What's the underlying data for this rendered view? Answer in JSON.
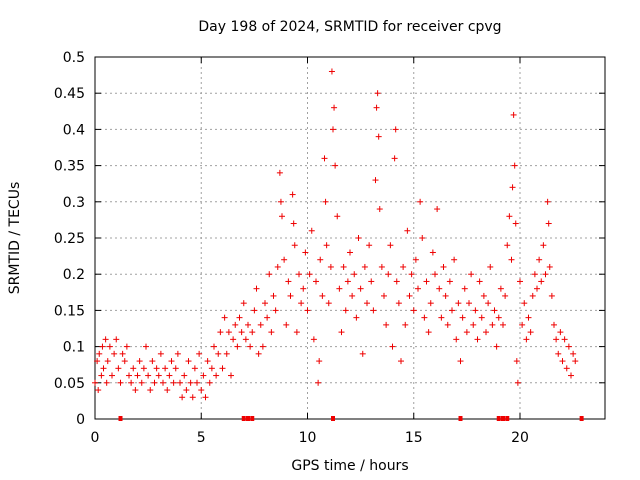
{
  "chart_data": {
    "type": "scatter",
    "title": "Day 198 of 2024, SRMTID for receiver cpvg",
    "xlabel": "GPS time / hours",
    "ylabel": "SRMTID / TECUs",
    "xlim": [
      0,
      24
    ],
    "ylim": [
      0,
      0.5
    ],
    "grid": true,
    "marker": "+",
    "series_color": "#ee0000",
    "x_ticks": [
      0,
      5,
      10,
      15,
      20
    ],
    "y_ticks": [
      0,
      0.05,
      0.1,
      0.15,
      0.2,
      0.25,
      0.3,
      0.35,
      0.4,
      0.45,
      0.5
    ],
    "x_tick_labels": [
      "0",
      "5",
      "10",
      "15",
      "20"
    ],
    "y_tick_labels": [
      "0",
      "0.05",
      "0.1",
      "0.15",
      "0.2",
      "0.25",
      "0.3",
      "0.35",
      "0.4",
      "0.45",
      "0.5"
    ],
    "series": [
      {
        "name": "SRMTID",
        "points": [
          [
            0.0,
            0.05
          ],
          [
            0.1,
            0.08
          ],
          [
            0.15,
            0.04
          ],
          [
            0.2,
            0.09
          ],
          [
            0.3,
            0.06
          ],
          [
            0.35,
            0.1
          ],
          [
            0.4,
            0.07
          ],
          [
            0.5,
            0.11
          ],
          [
            0.55,
            0.05
          ],
          [
            0.6,
            0.08
          ],
          [
            0.7,
            0.1
          ],
          [
            0.8,
            0.06
          ],
          [
            0.9,
            0.09
          ],
          [
            1.0,
            0.11
          ],
          [
            1.1,
            0.07
          ],
          [
            1.2,
            0.05
          ],
          [
            1.3,
            0.09
          ],
          [
            1.4,
            0.08
          ],
          [
            1.5,
            0.1
          ],
          [
            1.6,
            0.06
          ],
          [
            1.7,
            0.05
          ],
          [
            1.8,
            0.07
          ],
          [
            1.9,
            0.04
          ],
          [
            2.0,
            0.06
          ],
          [
            2.1,
            0.08
          ],
          [
            2.2,
            0.05
          ],
          [
            2.3,
            0.07
          ],
          [
            2.4,
            0.1
          ],
          [
            2.5,
            0.06
          ],
          [
            2.6,
            0.04
          ],
          [
            2.7,
            0.08
          ],
          [
            2.8,
            0.05
          ],
          [
            2.9,
            0.07
          ],
          [
            3.0,
            0.06
          ],
          [
            3.1,
            0.09
          ],
          [
            3.2,
            0.05
          ],
          [
            3.3,
            0.07
          ],
          [
            3.4,
            0.04
          ],
          [
            3.5,
            0.06
          ],
          [
            3.6,
            0.08
          ],
          [
            3.7,
            0.05
          ],
          [
            3.8,
            0.07
          ],
          [
            3.9,
            0.09
          ],
          [
            4.0,
            0.05
          ],
          [
            4.1,
            0.03
          ],
          [
            4.2,
            0.06
          ],
          [
            4.3,
            0.04
          ],
          [
            4.4,
            0.08
          ],
          [
            4.5,
            0.05
          ],
          [
            4.6,
            0.03
          ],
          [
            4.7,
            0.07
          ],
          [
            4.8,
            0.05
          ],
          [
            4.9,
            0.09
          ],
          [
            5.0,
            0.04
          ],
          [
            5.1,
            0.06
          ],
          [
            5.2,
            0.03
          ],
          [
            5.3,
            0.08
          ],
          [
            5.4,
            0.05
          ],
          [
            5.5,
            0.07
          ],
          [
            5.6,
            0.1
          ],
          [
            5.7,
            0.06
          ],
          [
            5.8,
            0.09
          ],
          [
            5.9,
            0.12
          ],
          [
            6.0,
            0.07
          ],
          [
            6.1,
            0.14
          ],
          [
            6.2,
            0.09
          ],
          [
            6.3,
            0.12
          ],
          [
            6.4,
            0.06
          ],
          [
            6.5,
            0.11
          ],
          [
            6.6,
            0.13
          ],
          [
            6.7,
            0.1
          ],
          [
            6.8,
            0.14
          ],
          [
            6.9,
            0.12
          ],
          [
            7.0,
            0.16
          ],
          [
            7.1,
            0.11
          ],
          [
            7.2,
            0.13
          ],
          [
            7.3,
            0.1
          ],
          [
            7.4,
            0.12
          ],
          [
            7.5,
            0.15
          ],
          [
            7.6,
            0.18
          ],
          [
            7.7,
            0.09
          ],
          [
            7.8,
            0.13
          ],
          [
            7.9,
            0.1
          ],
          [
            8.0,
            0.16
          ],
          [
            8.1,
            0.14
          ],
          [
            8.2,
            0.2
          ],
          [
            8.3,
            0.12
          ],
          [
            8.4,
            0.17
          ],
          [
            8.5,
            0.15
          ],
          [
            8.6,
            0.21
          ],
          [
            8.7,
            0.34
          ],
          [
            8.75,
            0.3
          ],
          [
            8.8,
            0.28
          ],
          [
            8.9,
            0.22
          ],
          [
            9.0,
            0.13
          ],
          [
            9.1,
            0.19
          ],
          [
            9.2,
            0.17
          ],
          [
            9.3,
            0.31
          ],
          [
            9.35,
            0.27
          ],
          [
            9.4,
            0.24
          ],
          [
            9.5,
            0.12
          ],
          [
            9.6,
            0.2
          ],
          [
            9.7,
            0.16
          ],
          [
            9.8,
            0.18
          ],
          [
            9.9,
            0.23
          ],
          [
            10.0,
            0.15
          ],
          [
            10.1,
            0.2
          ],
          [
            10.2,
            0.26
          ],
          [
            10.3,
            0.11
          ],
          [
            10.4,
            0.19
          ],
          [
            10.5,
            0.05
          ],
          [
            10.55,
            0.08
          ],
          [
            10.6,
            0.22
          ],
          [
            10.7,
            0.17
          ],
          [
            10.8,
            0.36
          ],
          [
            10.85,
            0.3
          ],
          [
            10.9,
            0.24
          ],
          [
            11.0,
            0.16
          ],
          [
            11.1,
            0.21
          ],
          [
            11.15,
            0.48
          ],
          [
            11.2,
            0.4
          ],
          [
            11.25,
            0.43
          ],
          [
            11.3,
            0.35
          ],
          [
            11.4,
            0.28
          ],
          [
            11.5,
            0.18
          ],
          [
            11.6,
            0.12
          ],
          [
            11.7,
            0.21
          ],
          [
            11.8,
            0.15
          ],
          [
            11.9,
            0.19
          ],
          [
            12.0,
            0.23
          ],
          [
            12.1,
            0.17
          ],
          [
            12.2,
            0.2
          ],
          [
            12.3,
            0.14
          ],
          [
            12.4,
            0.25
          ],
          [
            12.5,
            0.18
          ],
          [
            12.6,
            0.09
          ],
          [
            12.7,
            0.21
          ],
          [
            12.8,
            0.16
          ],
          [
            12.9,
            0.24
          ],
          [
            13.0,
            0.19
          ],
          [
            13.1,
            0.15
          ],
          [
            13.2,
            0.33
          ],
          [
            13.25,
            0.43
          ],
          [
            13.3,
            0.45
          ],
          [
            13.35,
            0.39
          ],
          [
            13.4,
            0.29
          ],
          [
            13.5,
            0.21
          ],
          [
            13.6,
            0.17
          ],
          [
            13.7,
            0.13
          ],
          [
            13.8,
            0.2
          ],
          [
            13.9,
            0.24
          ],
          [
            14.0,
            0.1
          ],
          [
            14.1,
            0.36
          ],
          [
            14.15,
            0.4
          ],
          [
            14.2,
            0.19
          ],
          [
            14.3,
            0.16
          ],
          [
            14.4,
            0.08
          ],
          [
            14.5,
            0.21
          ],
          [
            14.6,
            0.13
          ],
          [
            14.7,
            0.26
          ],
          [
            14.8,
            0.17
          ],
          [
            14.9,
            0.2
          ],
          [
            15.0,
            0.15
          ],
          [
            15.1,
            0.22
          ],
          [
            15.2,
            0.18
          ],
          [
            15.3,
            0.3
          ],
          [
            15.4,
            0.25
          ],
          [
            15.5,
            0.14
          ],
          [
            15.6,
            0.19
          ],
          [
            15.7,
            0.12
          ],
          [
            15.8,
            0.16
          ],
          [
            15.9,
            0.23
          ],
          [
            16.0,
            0.2
          ],
          [
            16.1,
            0.29
          ],
          [
            16.2,
            0.18
          ],
          [
            16.3,
            0.14
          ],
          [
            16.4,
            0.21
          ],
          [
            16.5,
            0.17
          ],
          [
            16.6,
            0.13
          ],
          [
            16.7,
            0.19
          ],
          [
            16.8,
            0.15
          ],
          [
            16.9,
            0.22
          ],
          [
            17.0,
            0.11
          ],
          [
            17.1,
            0.16
          ],
          [
            17.2,
            0.08
          ],
          [
            17.3,
            0.14
          ],
          [
            17.4,
            0.18
          ],
          [
            17.5,
            0.12
          ],
          [
            17.6,
            0.16
          ],
          [
            17.7,
            0.2
          ],
          [
            17.8,
            0.13
          ],
          [
            17.9,
            0.15
          ],
          [
            18.0,
            0.11
          ],
          [
            18.1,
            0.19
          ],
          [
            18.2,
            0.14
          ],
          [
            18.3,
            0.17
          ],
          [
            18.4,
            0.12
          ],
          [
            18.5,
            0.16
          ],
          [
            18.6,
            0.21
          ],
          [
            18.7,
            0.13
          ],
          [
            18.8,
            0.15
          ],
          [
            18.9,
            0.1
          ],
          [
            19.0,
            0.14
          ],
          [
            19.1,
            0.18
          ],
          [
            19.2,
            0.13
          ],
          [
            19.3,
            0.17
          ],
          [
            19.4,
            0.24
          ],
          [
            19.5,
            0.28
          ],
          [
            19.6,
            0.22
          ],
          [
            19.65,
            0.32
          ],
          [
            19.7,
            0.42
          ],
          [
            19.75,
            0.35
          ],
          [
            19.8,
            0.27
          ],
          [
            19.85,
            0.08
          ],
          [
            19.9,
            0.05
          ],
          [
            20.0,
            0.19
          ],
          [
            20.1,
            0.13
          ],
          [
            20.2,
            0.16
          ],
          [
            20.3,
            0.11
          ],
          [
            20.4,
            0.14
          ],
          [
            20.5,
            0.12
          ],
          [
            20.6,
            0.17
          ],
          [
            20.7,
            0.2
          ],
          [
            20.8,
            0.18
          ],
          [
            20.9,
            0.22
          ],
          [
            21.0,
            0.19
          ],
          [
            21.1,
            0.24
          ],
          [
            21.2,
            0.2
          ],
          [
            21.3,
            0.3
          ],
          [
            21.35,
            0.27
          ],
          [
            21.4,
            0.21
          ],
          [
            21.5,
            0.17
          ],
          [
            21.6,
            0.13
          ],
          [
            21.7,
            0.11
          ],
          [
            21.8,
            0.09
          ],
          [
            21.9,
            0.12
          ],
          [
            22.0,
            0.08
          ],
          [
            22.1,
            0.11
          ],
          [
            22.2,
            0.07
          ],
          [
            22.3,
            0.1
          ],
          [
            22.4,
            0.06
          ],
          [
            22.5,
            0.09
          ],
          [
            22.6,
            0.08
          ]
        ]
      }
    ],
    "axis_markers_x": [
      1.2,
      7.0,
      7.2,
      7.4,
      11.2,
      17.2,
      19.0,
      19.2,
      19.4,
      22.9
    ]
  }
}
